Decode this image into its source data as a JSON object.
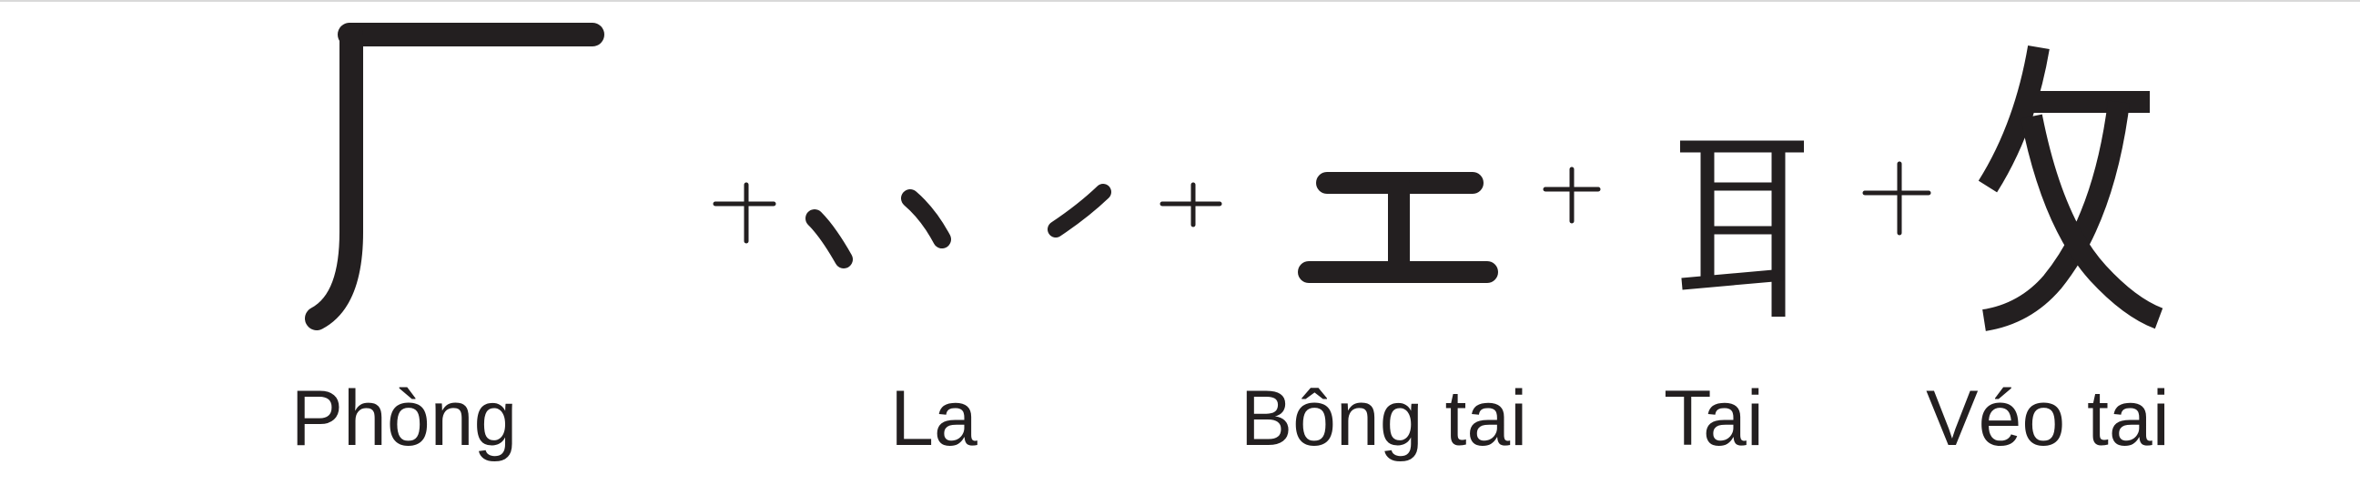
{
  "labels": {
    "phong": "Phòng",
    "la": "La",
    "bong_tai": "Bông tai",
    "tai": "Tai",
    "veo_tai": "Véo tai"
  },
  "colors": {
    "ink": "#231f20",
    "background": "#ffffff"
  }
}
